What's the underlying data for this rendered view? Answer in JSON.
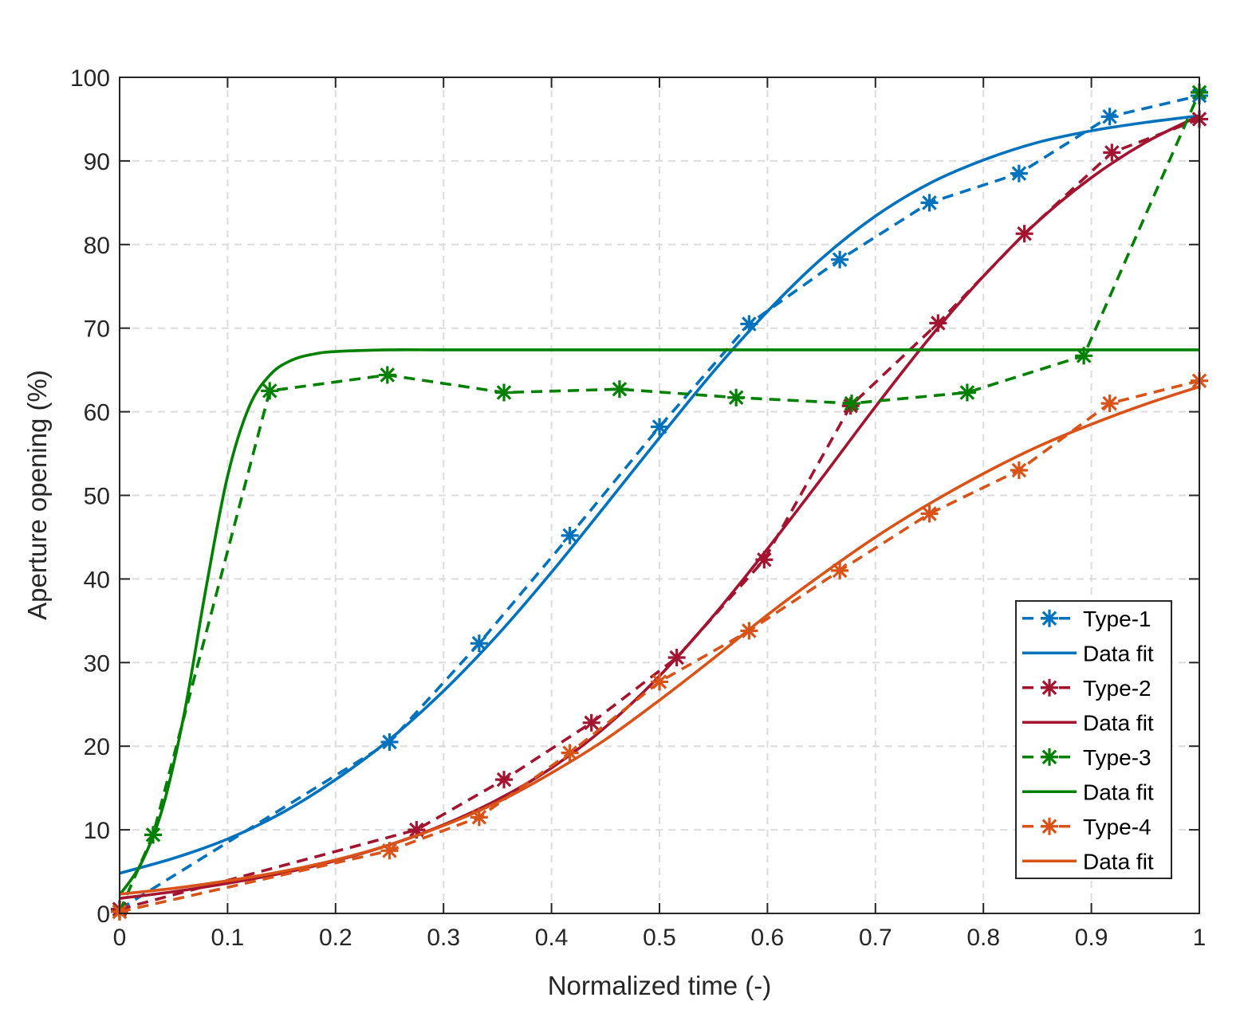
{
  "chart_data": {
    "type": "line",
    "title": "",
    "xlabel": "Normalized time (-)",
    "ylabel": "Aperture opening (%)",
    "xlim": [
      0,
      1
    ],
    "ylim": [
      0,
      100
    ],
    "x_ticks": [
      0,
      0.1,
      0.2,
      0.3,
      0.4,
      0.5,
      0.6,
      0.7,
      0.8,
      0.9,
      1
    ],
    "x_tick_labels": [
      "0",
      "0.1",
      "0.2",
      "0.3",
      "0.4",
      "0.5",
      "0.6",
      "0.7",
      "0.8",
      "0.9",
      "1"
    ],
    "y_ticks": [
      0,
      10,
      20,
      30,
      40,
      50,
      60,
      70,
      80,
      90,
      100
    ],
    "y_tick_labels": [
      "0",
      "10",
      "20",
      "30",
      "40",
      "50",
      "60",
      "70",
      "80",
      "90",
      "100"
    ],
    "grid": true,
    "legend_position": "bottom-right",
    "series": [
      {
        "name": "Type-1",
        "style": "dashed-marker",
        "color": "#0072BD",
        "x": [
          0,
          0.25,
          0.333,
          0.417,
          0.5,
          0.583,
          0.667,
          0.75,
          0.833,
          0.917,
          1.0
        ],
        "y": [
          0.5,
          20.5,
          32.3,
          45.2,
          58.2,
          70.5,
          78.2,
          85.0,
          88.5,
          95.3,
          97.8
        ]
      },
      {
        "name": "Data fit",
        "style": "solid",
        "color": "#0072BD",
        "x": [
          0,
          0.05,
          0.1,
          0.15,
          0.2,
          0.25,
          0.3,
          0.35,
          0.4,
          0.45,
          0.5,
          0.55,
          0.6,
          0.65,
          0.7,
          0.75,
          0.8,
          0.85,
          0.9,
          0.95,
          1.0
        ],
        "y": [
          4.8,
          6.6,
          8.9,
          12.0,
          16.0,
          20.8,
          26.6,
          33.3,
          40.8,
          48.8,
          56.9,
          64.8,
          72.0,
          78.3,
          83.4,
          87.3,
          90.1,
          92.2,
          93.6,
          94.6,
          95.4
        ]
      },
      {
        "name": "Type-2",
        "style": "dashed-marker",
        "color": "#A2142F",
        "x": [
          0,
          0.275,
          0.356,
          0.437,
          0.516,
          0.597,
          0.677,
          0.758,
          0.838,
          0.919,
          1.0
        ],
        "y": [
          0.5,
          10.0,
          16.0,
          22.8,
          30.6,
          42.3,
          60.7,
          70.6,
          81.3,
          91.0,
          95.0
        ]
      },
      {
        "name": "Data fit",
        "style": "solid",
        "color": "#A2142F",
        "x": [
          0,
          0.05,
          0.1,
          0.15,
          0.2,
          0.25,
          0.3,
          0.35,
          0.4,
          0.45,
          0.5,
          0.55,
          0.6,
          0.65,
          0.7,
          0.75,
          0.8,
          0.85,
          0.9,
          0.95,
          1.0
        ],
        "y": [
          1.8,
          2.6,
          3.6,
          4.8,
          6.3,
          8.2,
          10.6,
          13.6,
          17.4,
          22.3,
          28.4,
          35.6,
          43.6,
          52.0,
          60.6,
          68.8,
          76.2,
          82.7,
          88.0,
          92.2,
          95.4
        ]
      },
      {
        "name": "Type-3",
        "style": "dashed-marker",
        "color": "#008000",
        "x": [
          0,
          0.031,
          0.139,
          0.248,
          0.356,
          0.463,
          0.571,
          0.678,
          0.785,
          0.893,
          1.0
        ],
        "y": [
          0.2,
          9.4,
          62.5,
          64.4,
          62.3,
          62.7,
          61.7,
          61.0,
          62.3,
          66.7,
          98.2
        ]
      },
      {
        "name": "Data fit",
        "style": "solid",
        "color": "#008000",
        "x": [
          0,
          0.02,
          0.04,
          0.06,
          0.08,
          0.1,
          0.12,
          0.14,
          0.16,
          0.18,
          0.2,
          0.25,
          0.3,
          0.4,
          0.6,
          0.8,
          1.0
        ],
        "y": [
          2.2,
          6.0,
          12.7,
          24.0,
          38.9,
          52.3,
          60.6,
          64.5,
          66.2,
          66.9,
          67.2,
          67.4,
          67.4,
          67.4,
          67.4,
          67.4,
          67.4
        ]
      },
      {
        "name": "Type-4",
        "style": "dashed-marker",
        "color": "#D95319",
        "x": [
          0,
          0.25,
          0.333,
          0.417,
          0.5,
          0.583,
          0.667,
          0.75,
          0.833,
          0.917,
          1.0
        ],
        "y": [
          0.2,
          7.5,
          11.5,
          19.2,
          27.7,
          33.8,
          41.0,
          47.8,
          53.0,
          61.0,
          63.7
        ]
      },
      {
        "name": "Data fit",
        "style": "solid",
        "color": "#D95319",
        "x": [
          0,
          0.05,
          0.1,
          0.15,
          0.2,
          0.25,
          0.3,
          0.35,
          0.4,
          0.45,
          0.5,
          0.55,
          0.6,
          0.65,
          0.7,
          0.75,
          0.8,
          0.85,
          0.9,
          0.95,
          1.0
        ],
        "y": [
          2.3,
          3.0,
          3.9,
          5.0,
          6.4,
          8.2,
          10.5,
          13.3,
          16.8,
          20.8,
          25.5,
          30.5,
          35.7,
          40.5,
          45.0,
          49.0,
          52.6,
          55.8,
          58.5,
          60.9,
          63.0
        ]
      }
    ]
  }
}
